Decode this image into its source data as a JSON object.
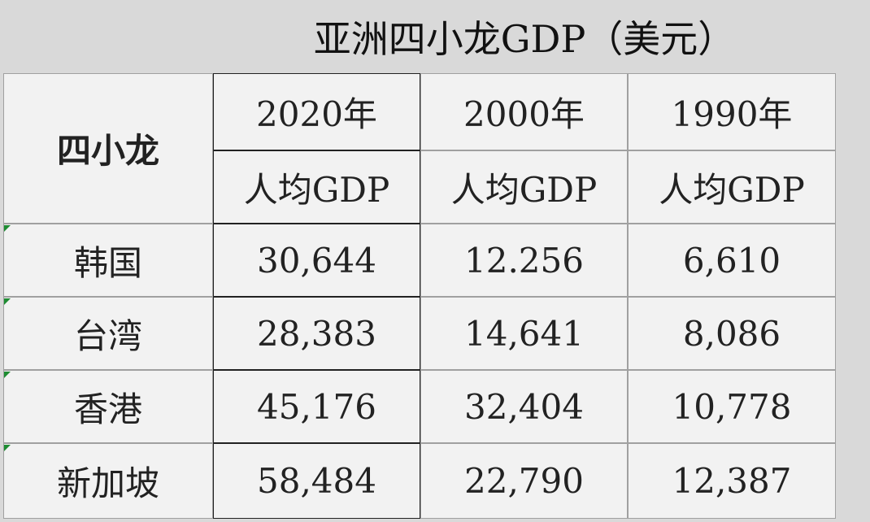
{
  "header": {
    "title": "亚洲四小龙GDP（美元）"
  },
  "table": {
    "corner": "四小龙",
    "years": [
      "2020年",
      "2000年",
      "1990年"
    ],
    "subheaders": [
      "人均GDP",
      "人均GDP",
      "人均GDP"
    ],
    "rows": [
      [
        "韩国",
        "30,644",
        "12.256",
        "6,610"
      ],
      [
        "台湾",
        "28,383",
        "14,641",
        "8,086"
      ],
      [
        "香港",
        "45,176",
        "32,404",
        "10,778"
      ],
      [
        "新加坡",
        "58,484",
        "22,790",
        "12,387"
      ]
    ]
  }
}
